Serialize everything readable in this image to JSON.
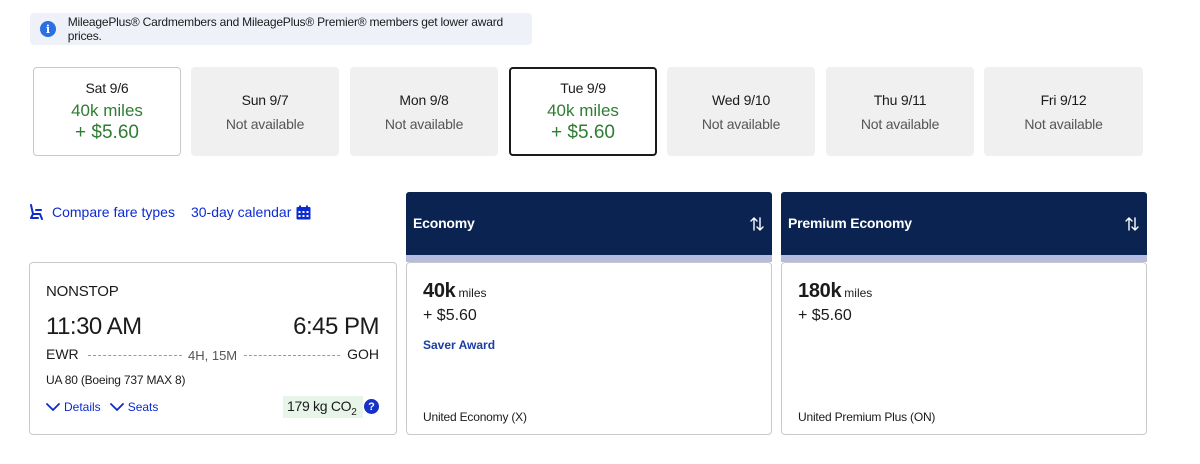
{
  "banner": {
    "text": "MileagePlus® Cardmembers and MileagePlus® Premier® members get lower award prices."
  },
  "dates": [
    {
      "label": "Sat 9/6",
      "available": true,
      "miles": "40k miles",
      "price": "+ $5.60"
    },
    {
      "label": "Sun 9/7",
      "available": false,
      "status": "Not available"
    },
    {
      "label": "Mon 9/8",
      "available": false,
      "status": "Not available"
    },
    {
      "label": "Tue 9/9",
      "available": true,
      "selected": true,
      "miles": "40k miles",
      "price": "+ $5.60"
    },
    {
      "label": "Wed 9/10",
      "available": false,
      "status": "Not available"
    },
    {
      "label": "Thu 9/11",
      "available": false,
      "status": "Not available"
    },
    {
      "label": "Fri 9/12",
      "available": false,
      "status": "Not available"
    }
  ],
  "tools": {
    "compare": "Compare fare types",
    "calendar": "30-day calendar"
  },
  "columns": {
    "economy": "Economy",
    "premium": "Premium Economy"
  },
  "flight": {
    "stops": "NONSTOP",
    "depart_time": "11:30 AM",
    "arrive_time": "6:45 PM",
    "origin": "EWR",
    "destination": "GOH",
    "duration": "4H, 15M",
    "aircraft": "UA 80 (Boeing 737 MAX 8)",
    "details": "Details",
    "seats": "Seats",
    "co2_value": "179 kg CO",
    "co2_sub": "2",
    "help": "?"
  },
  "fares": {
    "economy": {
      "miles": "40k",
      "unit": "miles",
      "price": "+ $5.60",
      "type": "Saver Award",
      "cabin": "United Economy (X)"
    },
    "premium": {
      "miles": "180k",
      "unit": "miles",
      "price": "+ $5.60",
      "cabin": "United Premium Plus (ON)"
    }
  },
  "colors": {
    "header": "#0b2350",
    "accent_bar": "#b6bce0",
    "link": "#0c2bd1",
    "price_green": "#2e7d32"
  }
}
